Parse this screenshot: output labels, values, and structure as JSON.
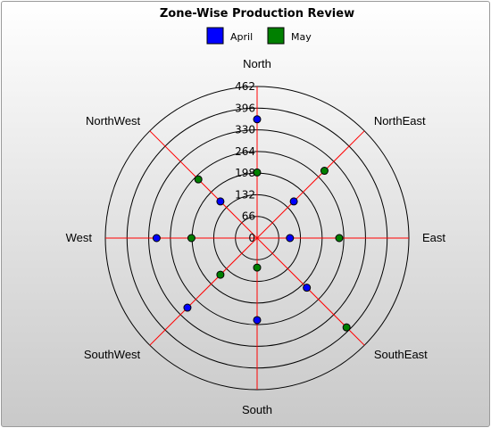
{
  "chart_data": {
    "type": "radar",
    "title": "Zone-Wise Production Review",
    "legend_position": "top",
    "axes": [
      "North",
      "NorthWest",
      "West",
      "SouthWest",
      "South",
      "SouthEast",
      "East",
      "NorthEast"
    ],
    "radial_ticks": [
      0,
      66,
      132,
      198,
      264,
      330,
      396,
      462
    ],
    "rmax": 462,
    "series": [
      {
        "name": "April",
        "color": "#0000ff",
        "values": [
          362,
          158,
          306,
          300,
          250,
          214,
          100,
          158
        ]
      },
      {
        "name": "May",
        "color": "#008000",
        "values": [
          200,
          253,
          200,
          158,
          90,
          385,
          250,
          290
        ]
      }
    ],
    "colors": {
      "grid_spoke": "#ff0000",
      "grid_ring": "#000000"
    }
  }
}
